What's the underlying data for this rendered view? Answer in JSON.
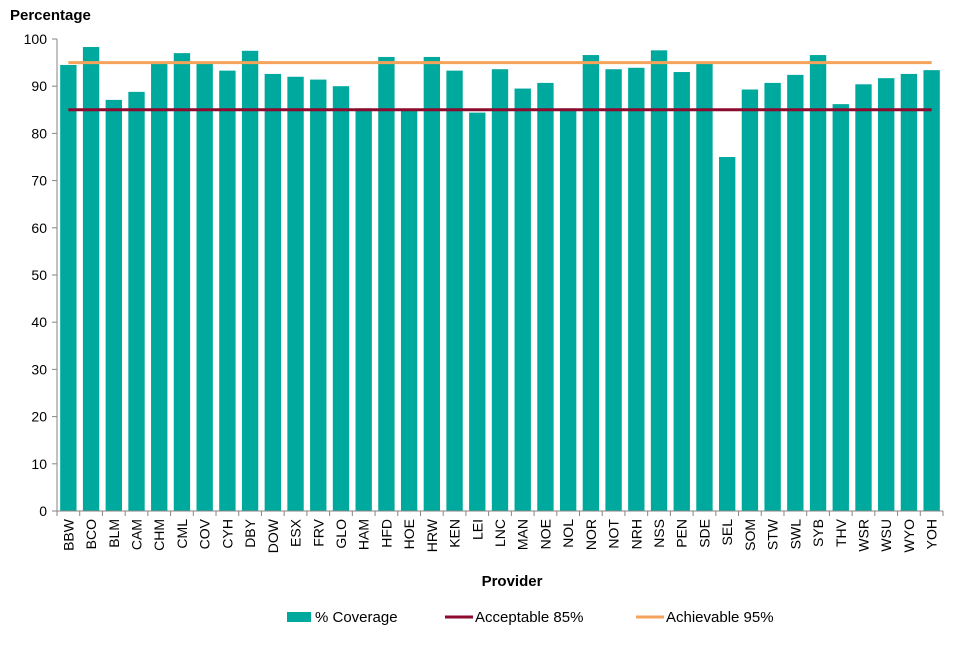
{
  "chart_data": {
    "type": "bar",
    "title": "",
    "ylabel": "Percentage",
    "xlabel": "Provider",
    "ylim": [
      0,
      100
    ],
    "yticks": [
      0,
      10,
      20,
      30,
      40,
      50,
      60,
      70,
      80,
      90,
      100
    ],
    "grid": false,
    "legend_position": "bottom",
    "categories": [
      "BBW",
      "BCO",
      "BLM",
      "CAM",
      "CHM",
      "CML",
      "COV",
      "CYH",
      "DBY",
      "DOW",
      "ESX",
      "FRV",
      "GLO",
      "HAM",
      "HFD",
      "HOE",
      "HRW",
      "KEN",
      "LEI",
      "LNC",
      "MAN",
      "NOE",
      "NOL",
      "NOR",
      "NOT",
      "NRH",
      "NSS",
      "PEN",
      "SDE",
      "SEL",
      "SOM",
      "STW",
      "SWL",
      "SYB",
      "THV",
      "WSR",
      "WSU",
      "WYO",
      "YOH"
    ],
    "series": [
      {
        "name": "% Coverage",
        "color": "#00A99D",
        "values": [
          94.5,
          98.3,
          87.1,
          88.8,
          94.9,
          97.0,
          94.9,
          93.3,
          97.5,
          92.6,
          92.0,
          91.4,
          90.0,
          85.3,
          96.2,
          85.0,
          96.2,
          93.3,
          84.4,
          93.6,
          89.5,
          90.7,
          85.3,
          96.6,
          93.6,
          93.9,
          97.6,
          93.0,
          95.0,
          75.0,
          89.3,
          90.7,
          92.4,
          96.6,
          86.2,
          90.4,
          91.7,
          92.6,
          93.4
        ]
      }
    ],
    "reference_lines": [
      {
        "name": "Acceptable 85%",
        "value": 85,
        "color": "#8B0A2E"
      },
      {
        "name": "Achievable 95%",
        "value": 95,
        "color": "#F5A35A"
      }
    ]
  }
}
